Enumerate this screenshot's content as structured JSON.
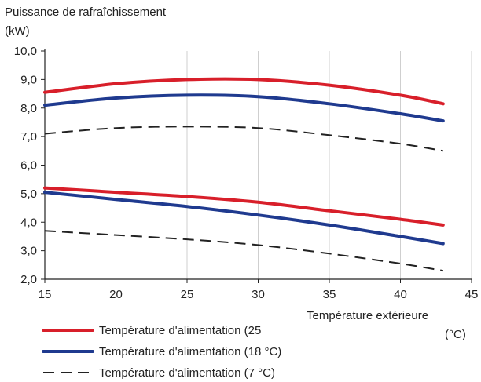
{
  "chart_data": {
    "type": "line",
    "title": "",
    "ylabel_line1": "Puissance de rafraîchissement",
    "ylabel_line2": "(kW)",
    "xlabel": "Température extérieure",
    "xunit": "(°C)",
    "xlim": [
      15,
      45
    ],
    "ylim": [
      2.0,
      10.0
    ],
    "xticks": [
      15,
      20,
      25,
      30,
      35,
      40,
      45
    ],
    "xtick_labels": [
      "15",
      "20",
      "25",
      "30",
      "35",
      "40",
      "45"
    ],
    "yticks": [
      2,
      3,
      4,
      5,
      6,
      7,
      8,
      9,
      10
    ],
    "ytick_labels": [
      "2,0",
      "3,0",
      "4,0",
      "5,0",
      "6,0",
      "7,0",
      "8,0",
      "9,0",
      "10,0"
    ],
    "grid": "vertical",
    "series": [
      {
        "name": "Température d'alimentation (25",
        "group": "upper",
        "color": "#d81f2a",
        "style": "solid",
        "x": [
          15,
          20,
          25,
          30,
          35,
          40,
          43
        ],
        "y": [
          8.55,
          8.85,
          9.0,
          9.0,
          8.8,
          8.45,
          8.15
        ]
      },
      {
        "name": "Température d'alimentation (18 °C)",
        "group": "upper",
        "color": "#1f3a8f",
        "style": "solid",
        "x": [
          15,
          20,
          25,
          30,
          35,
          40,
          43
        ],
        "y": [
          8.1,
          8.35,
          8.45,
          8.4,
          8.15,
          7.8,
          7.55
        ]
      },
      {
        "name": "Température d'alimentation (7 °C)",
        "group": "upper",
        "color": "#222222",
        "style": "dashed",
        "x": [
          15,
          20,
          25,
          30,
          35,
          40,
          43
        ],
        "y": [
          7.1,
          7.3,
          7.35,
          7.3,
          7.05,
          6.75,
          6.5
        ]
      },
      {
        "name": "Température d'alimentation (25",
        "group": "lower",
        "color": "#d81f2a",
        "style": "solid",
        "x": [
          15,
          20,
          25,
          30,
          35,
          40,
          43
        ],
        "y": [
          5.2,
          5.05,
          4.9,
          4.7,
          4.4,
          4.1,
          3.9
        ]
      },
      {
        "name": "Température d'alimentation (18 °C)",
        "group": "lower",
        "color": "#1f3a8f",
        "style": "solid",
        "x": [
          15,
          20,
          25,
          30,
          35,
          40,
          43
        ],
        "y": [
          5.05,
          4.8,
          4.55,
          4.25,
          3.9,
          3.5,
          3.25
        ]
      },
      {
        "name": "Température d'alimentation (7 °C)",
        "group": "lower",
        "color": "#222222",
        "style": "dashed",
        "x": [
          15,
          20,
          25,
          30,
          35,
          40,
          43
        ],
        "y": [
          3.7,
          3.55,
          3.4,
          3.2,
          2.9,
          2.55,
          2.3
        ]
      }
    ],
    "legend": {
      "placement": "bottom",
      "entries": [
        {
          "label": "Température d'alimentation (25",
          "color": "#d81f2a",
          "style": "solid"
        },
        {
          "label": "Température d'alimentation (18 °C)",
          "color": "#1f3a8f",
          "style": "solid"
        },
        {
          "label": "Température d'alimentation (7 °C)",
          "color": "#222222",
          "style": "dashed"
        }
      ]
    }
  }
}
